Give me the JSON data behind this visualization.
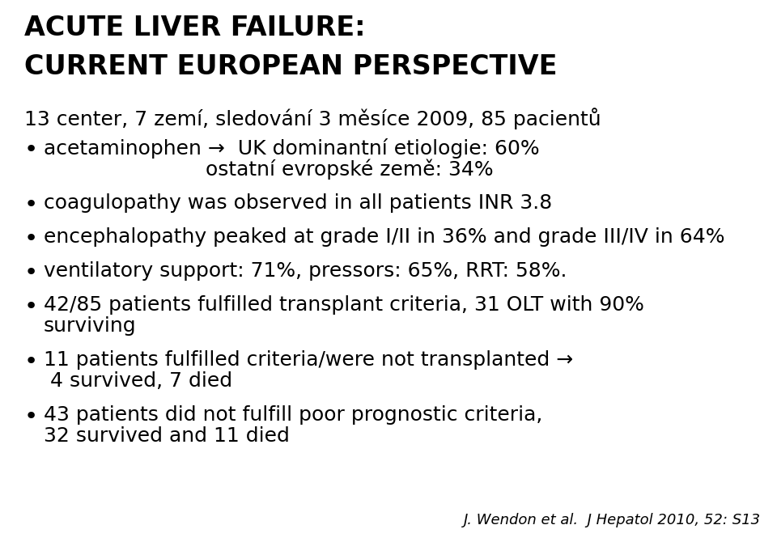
{
  "title_line1": "ACUTE LIVER FAILURE:",
  "title_line2": "CURRENT EUROPEAN PERSPECTIVE",
  "line_intro": "13 center, 7 zemí, sledování 3 měsíce 2009, 85 pacientů",
  "bullet1_part1": "acetaminophen →  UK dominantní etiologie: 60%",
  "bullet1_part2": "                         ostatní evropské země: 34%",
  "bullet2": "coagulopathy was observed in all patients INR 3.8",
  "bullet3": "encephalopathy peaked at grade I/II in 36% and grade III/IV in 64%",
  "bullet4": "ventilatory support: 71%, pressors: 65%, RRT: 58%.",
  "bullet5_line1": "42/85 patients fulfilled transplant criteria, 31 OLT with 90%",
  "bullet5_line2": "surviving",
  "bullet6_line1": "11 patients fulfilled criteria/were not transplanted →",
  "bullet6_line2": " 4 survived, 7 died",
  "bullet7_line1": "43 patients did not fulfill poor prognostic criteria,",
  "bullet7_line2": "32 survived and 11 died",
  "footer": "J. Wendon et al.  J Hepatol 2010, 52: S13",
  "bg_color": "#ffffff",
  "title_color": "#000000",
  "text_color": "#000000",
  "title_fontsize": 24,
  "body_fontsize": 18,
  "footer_fontsize": 13
}
